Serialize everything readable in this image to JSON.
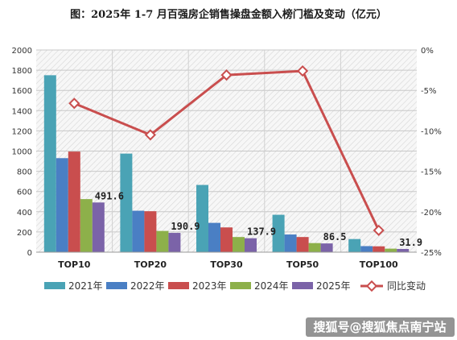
{
  "chart_data": {
    "type": "bar",
    "title": "图：2025年 1-7 月百强房企销售操盘金额入榜门槛及变动（亿元）",
    "categories": [
      "TOP10",
      "TOP20",
      "TOP30",
      "TOP50",
      "TOP100"
    ],
    "series": [
      {
        "name": "2021年",
        "values": [
          1750,
          975,
          665,
          370,
          130
        ],
        "color": "#4aa3b5"
      },
      {
        "name": "2022年",
        "values": [
          930,
          410,
          290,
          175,
          60
        ],
        "color": "#4a7fc4"
      },
      {
        "name": "2023年",
        "values": [
          995,
          405,
          245,
          150,
          58
        ],
        "color": "#c94e4e"
      },
      {
        "name": "2024年",
        "values": [
          525,
          210,
          150,
          90,
          35
        ],
        "color": "#8db04a"
      },
      {
        "name": "2025年",
        "values": [
          491.6,
          190.9,
          137.9,
          86.5,
          31.9
        ],
        "color": "#7b63a8"
      }
    ],
    "data_labels": [
      "491.6",
      "190.9",
      "137.9",
      "86.5",
      "31.9"
    ],
    "line_series": {
      "name": "同比变动",
      "values": [
        -6.6,
        -10.5,
        -3.1,
        -2.6,
        -22.3
      ],
      "color": "#c94e4e",
      "axis": "right"
    },
    "ylim": [
      0,
      2000
    ],
    "yticks": [
      0,
      200,
      400,
      600,
      800,
      1000,
      1200,
      1400,
      1600,
      1800,
      2000
    ],
    "y2lim": [
      -25,
      0
    ],
    "y2ticks": [
      "0%",
      "-5%",
      "-10%",
      "-15%",
      "-20%",
      "-25%"
    ],
    "grid": true,
    "legend_position": "bottom"
  },
  "watermark": "搜狐号@搜狐焦点南宁站"
}
